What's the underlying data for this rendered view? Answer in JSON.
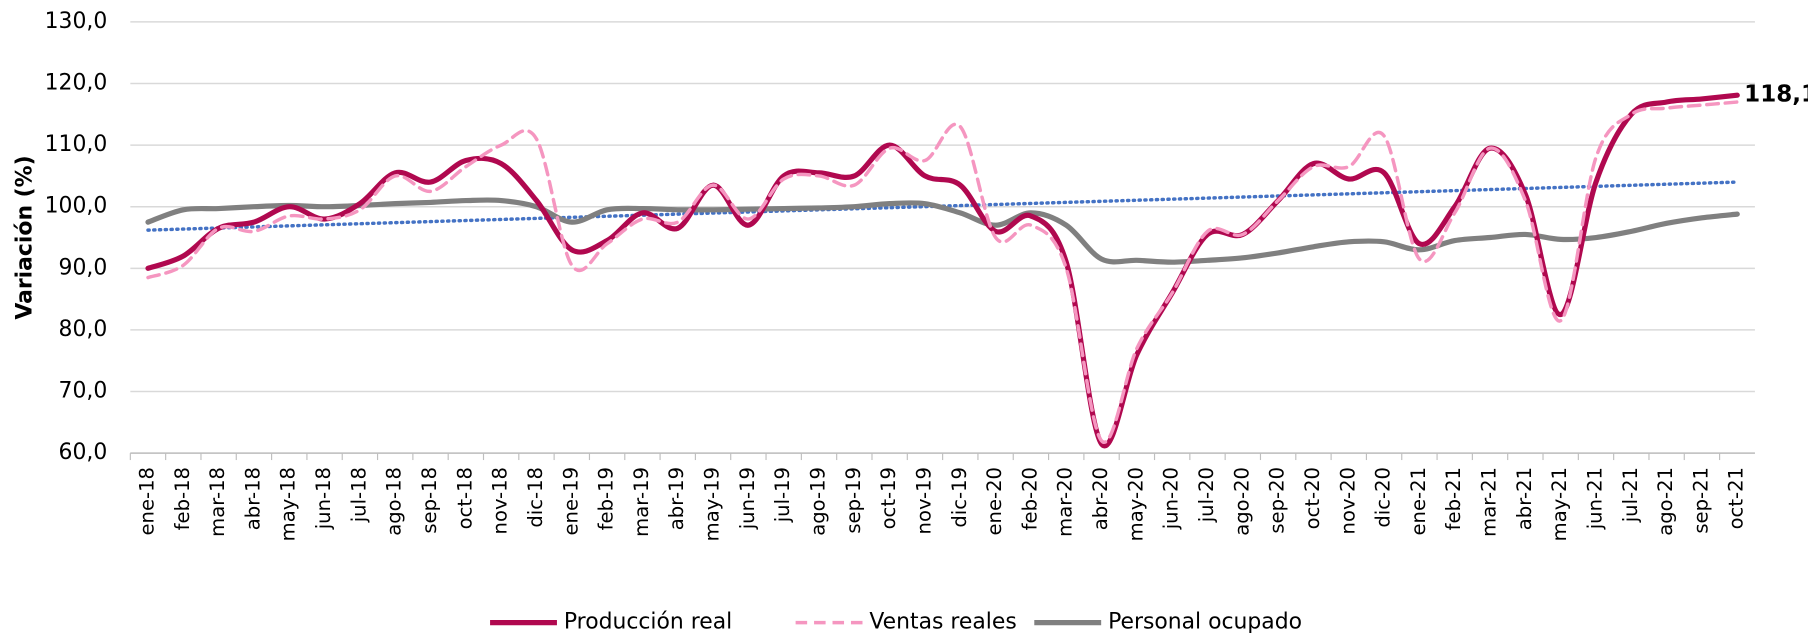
{
  "chart_data": {
    "type": "line",
    "y_label": "Variación (%)",
    "categories": [
      "ene-18",
      "feb-18",
      "mar-18",
      "abr-18",
      "may-18",
      "jun-18",
      "jul-18",
      "ago-18",
      "sep-18",
      "oct-18",
      "nov-18",
      "dic-18",
      "ene-19",
      "feb-19",
      "mar-19",
      "abr-19",
      "may-19",
      "jun-19",
      "jul-19",
      "ago-19",
      "sep-19",
      "oct-19",
      "nov-19",
      "dic-19",
      "ene-20",
      "feb-20",
      "mar-20",
      "abr-20",
      "may-20",
      "jun-20",
      "jul-20",
      "ago-20",
      "sep-20",
      "oct-20",
      "nov-20",
      "dic-20",
      "ene-21",
      "feb-21",
      "mar-21",
      "abr-21",
      "may-21",
      "jun-21",
      "jul-21",
      "ago-21",
      "sep-21",
      "oct-21"
    ],
    "series": [
      {
        "name": "Producción real",
        "color": "#b0084f",
        "dash": "solid",
        "values": [
          90.0,
          92,
          96.5,
          97.5,
          100,
          98,
          100.5,
          105.5,
          104,
          107.5,
          107,
          101,
          93,
          94.5,
          99,
          96.5,
          103.5,
          97,
          105,
          105.5,
          105,
          110,
          105,
          103.5,
          96,
          98.5,
          91,
          61.5,
          76,
          86,
          95.5,
          95.5,
          101,
          107,
          104.5,
          105.5,
          94,
          100,
          109.5,
          102,
          82.5,
          104,
          115,
          117,
          117.5,
          118.1
        ],
        "value_labels": [
          null,
          null,
          null,
          null,
          null,
          null,
          null,
          null,
          null,
          null,
          null,
          null,
          null,
          null,
          null,
          null,
          null,
          null,
          null,
          null,
          null,
          null,
          null,
          null,
          null,
          null,
          null,
          null,
          null,
          null,
          null,
          null,
          null,
          null,
          null,
          null,
          null,
          null,
          null,
          null,
          null,
          null,
          null,
          null,
          null,
          "118,1"
        ]
      },
      {
        "name": "Ventas reales",
        "color": "#f596c0",
        "dash": "dashed",
        "values": [
          88.5,
          90.5,
          96.5,
          96,
          98.5,
          98,
          99.5,
          105,
          102.5,
          106.5,
          110,
          111,
          90.5,
          94,
          98,
          97.5,
          103.5,
          98,
          104.5,
          105,
          103.5,
          109.5,
          107.5,
          113,
          95,
          97,
          90,
          62,
          77,
          86,
          96,
          95.5,
          101,
          106.5,
          106.5,
          111.5,
          91.5,
          99,
          109.5,
          101,
          81.5,
          108,
          115,
          116,
          116.5,
          117
        ]
      },
      {
        "name": "Personal ocupado",
        "color": "#808080",
        "dash": "solid",
        "values": [
          97.5,
          99.5,
          99.7,
          100,
          100.2,
          100,
          100.2,
          100.5,
          100.7,
          101,
          101,
          100,
          97.5,
          99.5,
          99.7,
          99.5,
          99.5,
          99.6,
          99.7,
          99.8,
          100,
          100.5,
          100.5,
          99,
          97,
          99,
          97,
          91.5,
          91.3,
          91,
          91.3,
          91.7,
          92.5,
          93.5,
          94.3,
          94.3,
          93,
          94.5,
          95,
          95.5,
          94.7,
          95,
          96,
          97.3,
          98.2,
          98.8
        ]
      }
    ],
    "trendline": {
      "values": [
        96.2,
        104
      ],
      "color": "#4472c4"
    },
    "ylim": [
      60,
      130
    ],
    "yticks": [
      {
        "value": 60,
        "label": "60,0"
      },
      {
        "value": 70,
        "label": "70,0"
      },
      {
        "value": 80,
        "label": "80,0"
      },
      {
        "value": 90,
        "label": "90,0"
      },
      {
        "value": 100,
        "label": "100,0"
      },
      {
        "value": 110,
        "label": "110,0"
      },
      {
        "value": 120,
        "label": "120,0"
      },
      {
        "value": 130,
        "label": "130,0"
      }
    ],
    "grid": true,
    "legend": "bottom"
  }
}
